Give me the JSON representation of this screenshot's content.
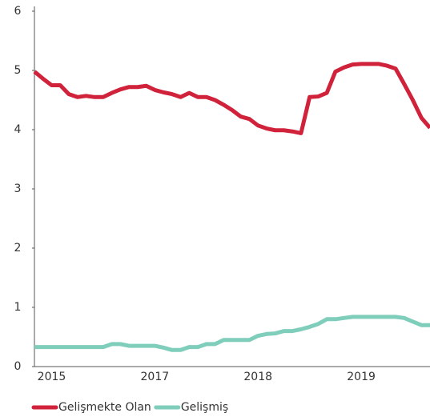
{
  "chart_data": {
    "type": "line",
    "categories": [
      null,
      null,
      "2015",
      null,
      null,
      null,
      null,
      null,
      null,
      null,
      null,
      null,
      null,
      null,
      "2017",
      null,
      null,
      null,
      null,
      null,
      null,
      null,
      null,
      null,
      null,
      null,
      "2018",
      null,
      null,
      null,
      null,
      null,
      null,
      null,
      null,
      null,
      null,
      null,
      "2019",
      null,
      null,
      null,
      null,
      null,
      null,
      null,
      null
    ],
    "series": [
      {
        "name": "Gelişmekte Olan",
        "color": "#d0223a",
        "values": [
          4.98,
          4.86,
          4.75,
          4.75,
          4.6,
          4.55,
          4.57,
          4.55,
          4.55,
          4.62,
          4.68,
          4.72,
          4.72,
          4.74,
          4.67,
          4.63,
          4.6,
          4.55,
          4.62,
          4.55,
          4.55,
          4.5,
          4.42,
          4.33,
          4.22,
          4.18,
          4.07,
          4.02,
          3.99,
          3.99,
          3.97,
          3.94,
          4.55,
          4.56,
          4.62,
          4.98,
          5.05,
          5.1,
          5.11,
          5.11,
          5.11,
          5.08,
          5.03,
          4.77,
          4.5,
          4.2,
          4.03
        ]
      },
      {
        "name": "Gelişmiş",
        "color": "#7fcdbb",
        "values": [
          0.33,
          0.33,
          0.33,
          0.33,
          0.33,
          0.33,
          0.33,
          0.33,
          0.33,
          0.38,
          0.38,
          0.35,
          0.35,
          0.35,
          0.35,
          0.32,
          0.28,
          0.28,
          0.33,
          0.33,
          0.38,
          0.38,
          0.45,
          0.45,
          0.45,
          0.45,
          0.52,
          0.55,
          0.56,
          0.6,
          0.6,
          0.63,
          0.67,
          0.72,
          0.8,
          0.8,
          0.82,
          0.84,
          0.84,
          0.84,
          0.84,
          0.84,
          0.84,
          0.82,
          0.76,
          0.7,
          0.7
        ]
      }
    ],
    "ylim": [
      0,
      6
    ],
    "yticks": [
      0,
      1,
      2,
      3,
      4,
      5,
      6
    ],
    "grid": false,
    "legend": "bottom"
  }
}
